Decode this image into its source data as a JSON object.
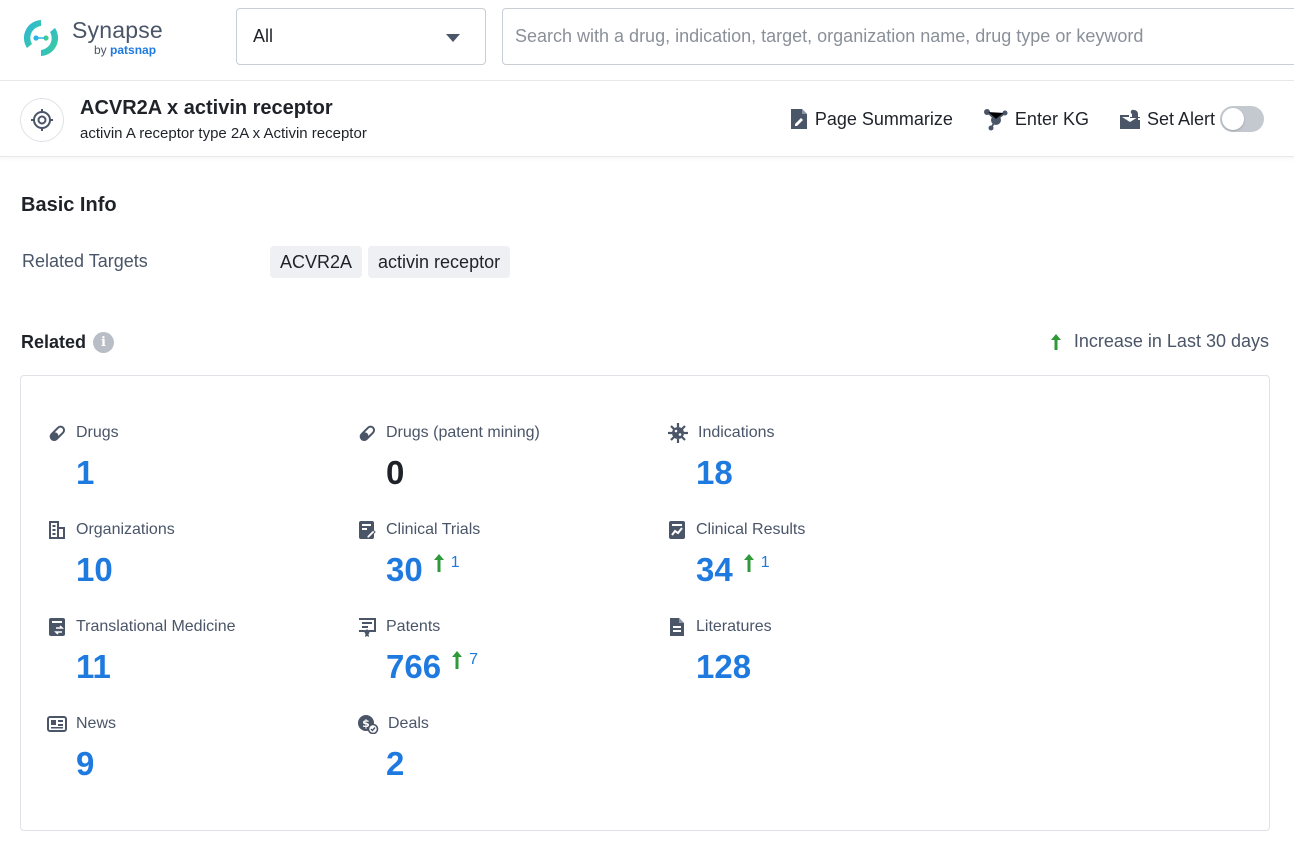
{
  "app": {
    "logo_name": "Synapse",
    "logo_by": "by",
    "logo_brand": "patsnap"
  },
  "search": {
    "scope_value": "All",
    "placeholder": "Search with a drug, indication, target, organization name, drug type or keyword"
  },
  "entity": {
    "title": "ACVR2A x activin receptor",
    "subtitle": "activin A receptor type 2A x Activin receptor",
    "actions": {
      "page_summarize": "Page Summarize",
      "enter_kg": "Enter KG",
      "set_alert": "Set Alert"
    },
    "alert_enabled": false
  },
  "basic_info": {
    "title": "Basic Info",
    "related_targets_label": "Related Targets",
    "related_targets": [
      "ACVR2A",
      "activin receptor"
    ]
  },
  "related": {
    "title": "Related",
    "legend": "Increase in Last 30 days",
    "colors": {
      "value": "#1f7ae0",
      "increase_arrow": "#2e9a3a"
    },
    "stats": [
      {
        "label": "Drugs",
        "icon": "pill-icon",
        "value": "1",
        "increase": null
      },
      {
        "label": "Drugs (patent mining)",
        "icon": "pill-icon",
        "value": "0",
        "increase": null
      },
      {
        "label": "Indications",
        "icon": "virus-icon",
        "value": "18",
        "increase": null
      },
      {
        "label": "Organizations",
        "icon": "building-icon",
        "value": "10",
        "increase": null
      },
      {
        "label": "Clinical Trials",
        "icon": "clinical-trial-icon",
        "value": "30",
        "increase": "1"
      },
      {
        "label": "Clinical Results",
        "icon": "clinical-result-icon",
        "value": "34",
        "increase": "1"
      },
      {
        "label": "Translational Medicine",
        "icon": "translational-icon",
        "value": "11",
        "increase": null
      },
      {
        "label": "Patents",
        "icon": "patent-icon",
        "value": "766",
        "increase": "7"
      },
      {
        "label": "Literatures",
        "icon": "document-icon",
        "value": "128",
        "increase": null
      },
      {
        "label": "News",
        "icon": "news-icon",
        "value": "9",
        "increase": null
      },
      {
        "label": "Deals",
        "icon": "deal-icon",
        "value": "2",
        "increase": null
      }
    ]
  }
}
